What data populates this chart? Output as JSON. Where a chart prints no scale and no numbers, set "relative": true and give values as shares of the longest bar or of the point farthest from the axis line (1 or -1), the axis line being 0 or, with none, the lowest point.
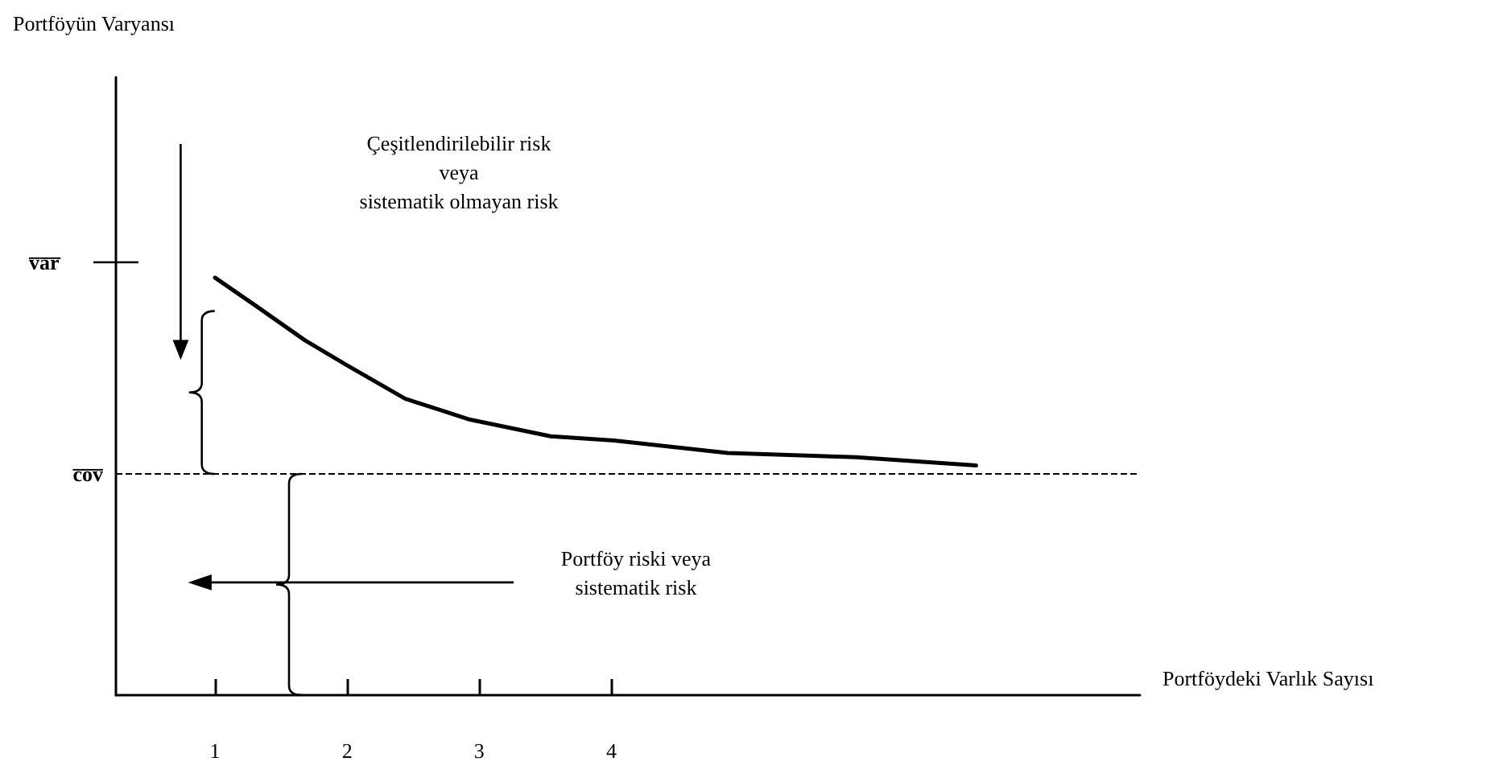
{
  "chart_data": {
    "type": "line",
    "relative": true,
    "xlabel": "Portföydeki Varlık Sayısı",
    "x": [
      1.0,
      1.32,
      1.68,
      2.0,
      2.44,
      2.93,
      3.54,
      4.02,
      4.88,
      5.85,
      6.76
    ],
    "series": [
      {
        "color": "#000000",
        "values": [
          1.0,
          0.93,
          0.85,
          0.79,
          0.71,
          0.66,
          0.62,
          0.61,
          0.58,
          0.57,
          0.55
        ]
      }
    ],
    "xlim": [
      0.25,
      8
    ],
    "xticks": [
      1,
      2,
      3,
      4
    ],
    "ref_lines": [
      {
        "axis": "y",
        "value": 0.53,
        "label": "c̅o̅v̅",
        "line_style": "dashed",
        "color": "#000000"
      }
    ],
    "annotations": [
      "v̅a̅r̅",
      "Çeşitlendirilebilir risk\nveya\nsistematik olmayan risk",
      "Portföy riski veya\nsistematik risk",
      "Portföyün Varyansı"
    ],
    "grid": false,
    "marker": "none",
    "line_style": "solid"
  }
}
